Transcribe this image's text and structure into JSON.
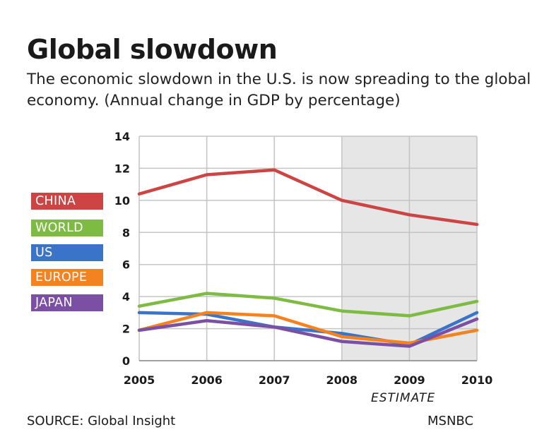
{
  "header": {
    "title": "Global slowdown",
    "subtitle": "The economic slowdown in the U.S. is now spreading to the global economy. (Annual change in GDP by percentage)"
  },
  "chart_data": {
    "type": "line",
    "title": "Global slowdown",
    "subtitle": "The economic slowdown in the U.S. is now spreading to the global economy. (Annual change in GDP by percentage)",
    "x": [
      "2005",
      "2006",
      "2007",
      "2008",
      "2009",
      "2010"
    ],
    "xlabel": "",
    "ylabel": "",
    "ylim": [
      0,
      14
    ],
    "yticks": [
      0,
      2,
      4,
      6,
      8,
      10,
      12,
      14
    ],
    "grid": true,
    "shaded_region": {
      "from": "2008",
      "to": "2010",
      "label": "ESTIMATE",
      "color": "#e6e6e6"
    },
    "series": [
      {
        "name": "CHINA",
        "color": "#cc4444",
        "values": [
          10.4,
          11.6,
          11.9,
          10.0,
          9.1,
          8.5
        ]
      },
      {
        "name": "WORLD",
        "color": "#7dbb42",
        "values": [
          3.4,
          4.2,
          3.9,
          3.1,
          2.8,
          3.7
        ]
      },
      {
        "name": "US",
        "color": "#3a74c9",
        "values": [
          3.0,
          2.9,
          2.1,
          1.7,
          1.0,
          3.0
        ]
      },
      {
        "name": "EUROPE",
        "color": "#f58220",
        "values": [
          1.9,
          3.0,
          2.8,
          1.5,
          1.1,
          1.9
        ]
      },
      {
        "name": "JAPAN",
        "color": "#7b4fa3",
        "values": [
          1.9,
          2.5,
          2.1,
          1.2,
          0.9,
          2.6
        ]
      }
    ]
  },
  "footer": {
    "estimate_label": "ESTIMATE",
    "source": "SOURCE: Global Insight",
    "credit": "MSNBC"
  }
}
